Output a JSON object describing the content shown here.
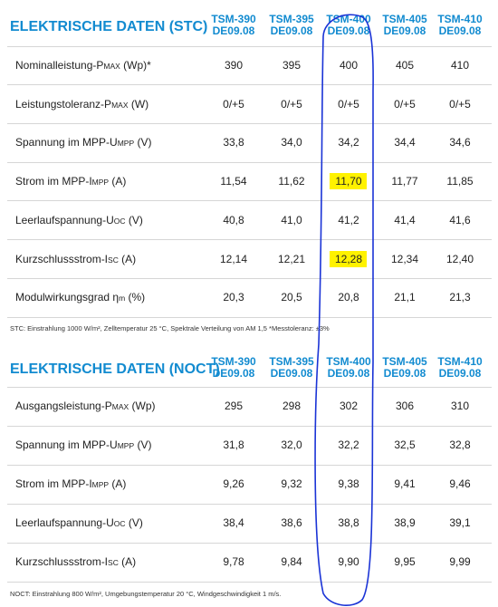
{
  "stc": {
    "title": "ELEKTRISCHE DATEN (STC)",
    "columns": [
      {
        "model": "TSM-390",
        "variant": "DE09.08"
      },
      {
        "model": "TSM-395",
        "variant": "DE09.08"
      },
      {
        "model": "TSM-400",
        "variant": "DE09.08"
      },
      {
        "model": "TSM-405",
        "variant": "DE09.08"
      },
      {
        "model": "TSM-410",
        "variant": "DE09.08"
      }
    ],
    "rows": [
      {
        "label": {
          "pre": "Nominalleistung-P",
          "sub": "MAX",
          "post": " (Wp)*"
        },
        "values": [
          "390",
          "395",
          "400",
          "405",
          "410"
        ]
      },
      {
        "label": {
          "pre": "Leistungstoleranz-P",
          "sub": "MAX",
          "post": " (W)"
        },
        "values": [
          "0/+5",
          "0/+5",
          "0/+5",
          "0/+5",
          "0/+5"
        ]
      },
      {
        "label": {
          "pre": "Spannung im MPP-U",
          "sub": "MPP",
          "post": " (V)"
        },
        "values": [
          "33,8",
          "34,0",
          "34,2",
          "34,4",
          "34,6"
        ]
      },
      {
        "label": {
          "pre": "Strom im MPP-I",
          "sub": "MPP",
          "post": " (A)"
        },
        "values": [
          "11,54",
          "11,62",
          "11,70",
          "11,77",
          "11,85"
        ]
      },
      {
        "label": {
          "pre": "Leerlaufspannung-U",
          "sub": "OC",
          "post": " (V)"
        },
        "values": [
          "40,8",
          "41,0",
          "41,2",
          "41,4",
          "41,6"
        ]
      },
      {
        "label": {
          "pre": "Kurzschlussstrom-I",
          "sub": "SC",
          "post": " (A)"
        },
        "values": [
          "12,14",
          "12,21",
          "12,28",
          "12,34",
          "12,40"
        ]
      },
      {
        "label": {
          "pre": "Modulwirkungsgrad η",
          "sub": "m",
          "post": " (%)"
        },
        "values": [
          "20,3",
          "20,5",
          "20,8",
          "21,1",
          "21,3"
        ]
      }
    ],
    "footnote": "STC: Einstrahlung 1000 W/m², Zelltemperatur 25 °C, Spektrale Verteilung von AM 1,5  *Messtoleranz: ±3%"
  },
  "noct": {
    "title": "ELEKTRISCHE DATEN (NOCT)",
    "columns": [
      {
        "model": "TSM-390",
        "variant": "DE09.08"
      },
      {
        "model": "TSM-395",
        "variant": "DE09.08"
      },
      {
        "model": "TSM-400",
        "variant": "DE09.08"
      },
      {
        "model": "TSM-405",
        "variant": "DE09.08"
      },
      {
        "model": "TSM-410",
        "variant": "DE09.08"
      }
    ],
    "rows": [
      {
        "label": {
          "pre": "Ausgangsleistung-P",
          "sub": "MAX",
          "post": " (Wp)"
        },
        "values": [
          "295",
          "298",
          "302",
          "306",
          "310"
        ]
      },
      {
        "label": {
          "pre": "Spannung im MPP-U",
          "sub": "MPP",
          "post": " (V)"
        },
        "values": [
          "31,8",
          "32,0",
          "32,2",
          "32,5",
          "32,8"
        ]
      },
      {
        "label": {
          "pre": "Strom im MPP-I",
          "sub": "MPP",
          "post": " (A)"
        },
        "values": [
          "9,26",
          "9,32",
          "9,38",
          "9,41",
          "9,46"
        ]
      },
      {
        "label": {
          "pre": "Leerlaufspannung-U",
          "sub": "OC",
          "post": " (V)"
        },
        "values": [
          "38,4",
          "38,6",
          "38,8",
          "38,9",
          "39,1"
        ]
      },
      {
        "label": {
          "pre": "Kurzschlussstrom-I",
          "sub": "SC",
          "post": " (A)"
        },
        "values": [
          "9,78",
          "9,84",
          "9,90",
          "9,95",
          "9,99"
        ]
      }
    ],
    "footnote": "NOCT: Einstrahlung 800 W/m², Umgebungstemperatur 20 °C, Windgeschwindigkeit 1 m/s."
  }
}
